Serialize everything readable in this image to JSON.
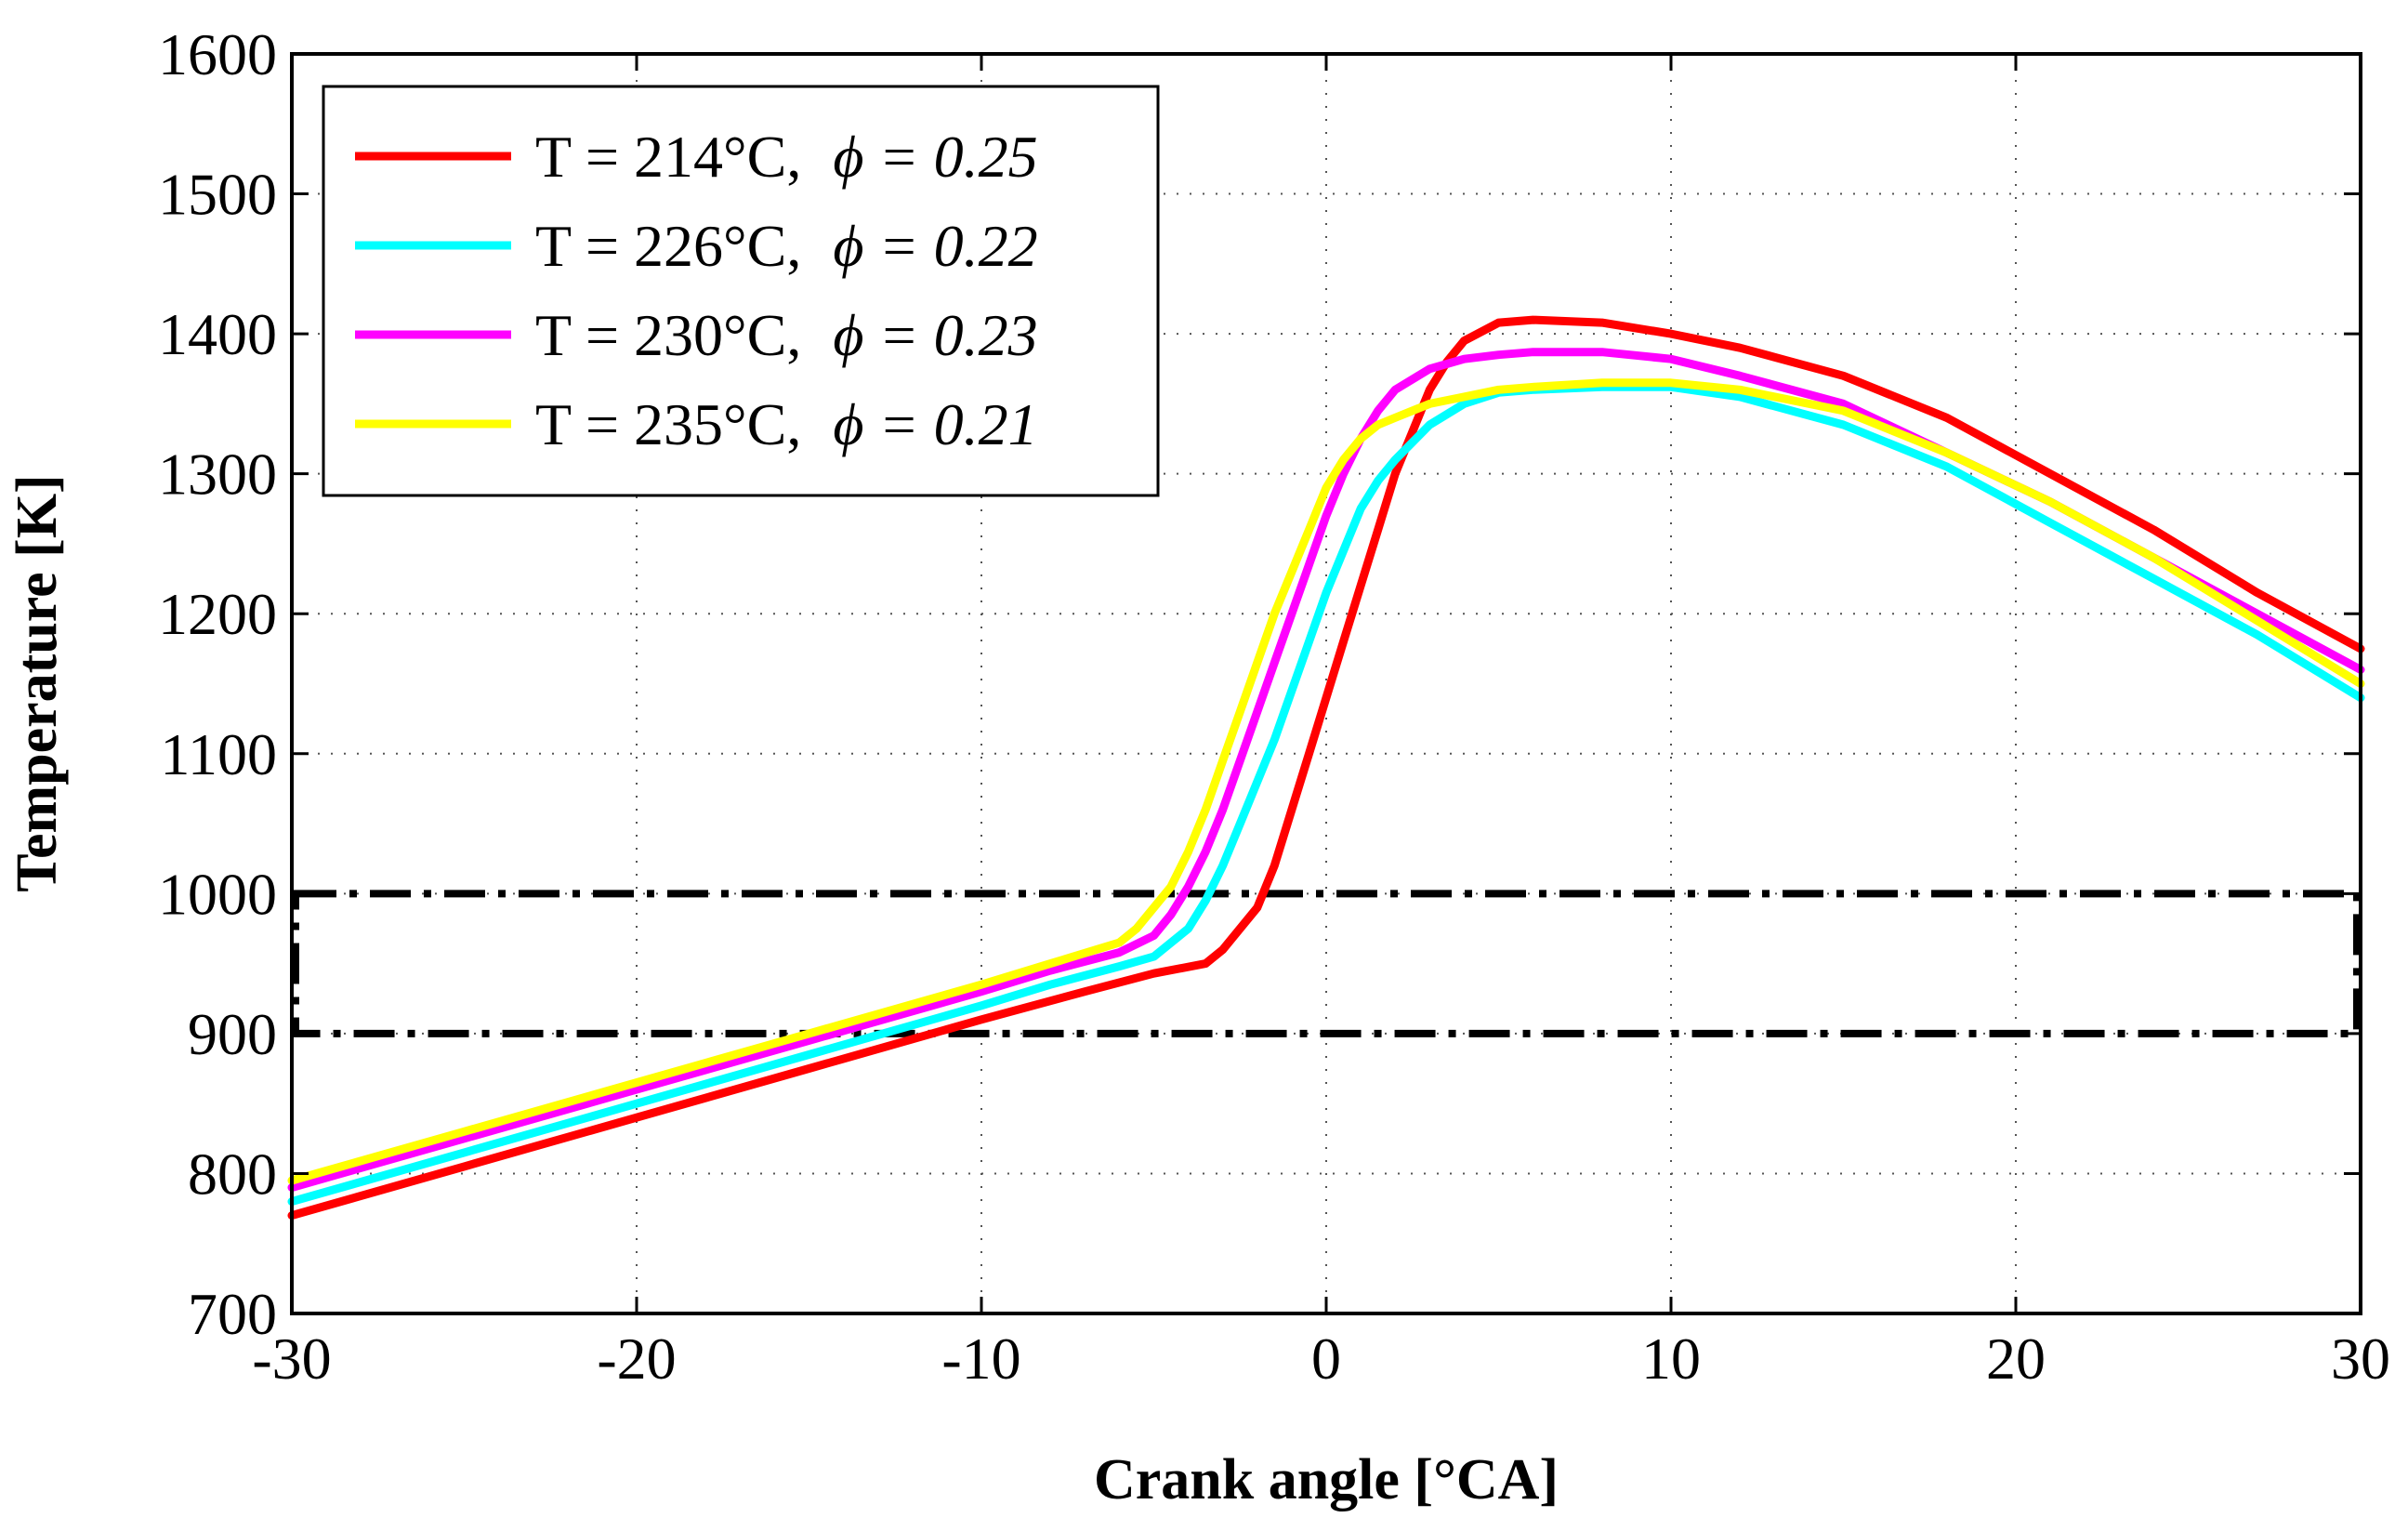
{
  "chart_data": {
    "type": "line",
    "title": "",
    "xlabel": "Crank angle [°CA]",
    "ylabel": "Temperature [K]",
    "xlim": [
      -30,
      30
    ],
    "ylim": [
      700,
      1600
    ],
    "x_ticks": [
      -30,
      -20,
      -10,
      0,
      10,
      20,
      30
    ],
    "y_ticks": [
      700,
      800,
      900,
      1000,
      1100,
      1200,
      1300,
      1400,
      1500,
      1600
    ],
    "grid": true,
    "legend_position": "top-left",
    "series": [
      {
        "name": "T = 214°C,",
        "phi_label": "ϕ = 0.25",
        "color": "#ff0000",
        "x": [
          -30,
          -25,
          -20,
          -15,
          -10,
          -7,
          -5,
          -3.5,
          -3,
          -2,
          -1.5,
          -1,
          -0.5,
          0,
          0.5,
          1,
          1.5,
          2,
          2.5,
          3,
          3.5,
          4,
          5,
          6,
          8,
          10,
          12,
          15,
          18,
          21,
          24,
          27,
          30
        ],
        "y": [
          770,
          805,
          840,
          875,
          910,
          930,
          943,
          950,
          960,
          990,
          1020,
          1060,
          1100,
          1140,
          1180,
          1220,
          1260,
          1300,
          1330,
          1360,
          1380,
          1395,
          1408,
          1410,
          1408,
          1400,
          1390,
          1370,
          1340,
          1300,
          1260,
          1215,
          1175
        ]
      },
      {
        "name": "T = 226°C,",
        "phi_label": "ϕ = 0.22",
        "color": "#00ffff",
        "x": [
          -30,
          -25,
          -20,
          -15,
          -10,
          -8,
          -6,
          -5,
          -4,
          -3.5,
          -3,
          -2.5,
          -2,
          -1.5,
          -1,
          -0.5,
          0,
          0.5,
          1,
          1.5,
          2,
          3,
          4,
          5,
          6,
          8,
          10,
          12,
          15,
          18,
          21,
          24,
          27,
          30
        ],
        "y": [
          780,
          815,
          850,
          885,
          920,
          935,
          948,
          955,
          975,
          995,
          1020,
          1050,
          1080,
          1110,
          1145,
          1180,
          1215,
          1245,
          1275,
          1295,
          1310,
          1335,
          1350,
          1358,
          1360,
          1362,
          1362,
          1355,
          1335,
          1305,
          1265,
          1225,
          1185,
          1140
        ]
      },
      {
        "name": "T = 230°C,",
        "phi_label": "ϕ = 0.23",
        "color": "#ff00ff",
        "x": [
          -30,
          -25,
          -20,
          -15,
          -10,
          -8,
          -6,
          -5,
          -4.5,
          -4,
          -3.5,
          -3,
          -2.5,
          -2,
          -1.5,
          -1,
          -0.5,
          0,
          0.5,
          1,
          1.5,
          2,
          3,
          4,
          5,
          6,
          8,
          10,
          12,
          15,
          18,
          21,
          24,
          27,
          30
        ],
        "y": [
          790,
          825,
          860,
          895,
          930,
          945,
          958,
          970,
          985,
          1005,
          1030,
          1060,
          1095,
          1130,
          1165,
          1200,
          1235,
          1270,
          1300,
          1325,
          1345,
          1360,
          1375,
          1382,
          1385,
          1387,
          1387,
          1382,
          1370,
          1350,
          1315,
          1280,
          1240,
          1200,
          1160
        ]
      },
      {
        "name": "T = 235°C,",
        "phi_label": "ϕ = 0.21",
        "color": "#ffff00",
        "x": [
          -30,
          -25,
          -20,
          -15,
          -10,
          -8,
          -6,
          -5.5,
          -5,
          -4.5,
          -4,
          -3.5,
          -3,
          -2.5,
          -2,
          -1.5,
          -1,
          -0.5,
          0,
          0.5,
          1,
          1.5,
          2,
          3,
          4,
          5,
          6,
          8,
          10,
          12,
          15,
          18,
          21,
          24,
          27,
          30
        ],
        "y": [
          795,
          830,
          865,
          900,
          935,
          950,
          965,
          975,
          990,
          1005,
          1030,
          1060,
          1095,
          1130,
          1165,
          1200,
          1230,
          1260,
          1290,
          1310,
          1325,
          1335,
          1340,
          1350,
          1355,
          1360,
          1362,
          1365,
          1365,
          1360,
          1345,
          1315,
          1280,
          1240,
          1195,
          1150
        ]
      }
    ],
    "annotations": [
      {
        "type": "dash-dot-box",
        "x_range": [
          -30,
          30
        ],
        "y_range": [
          900,
          1000
        ]
      }
    ]
  }
}
